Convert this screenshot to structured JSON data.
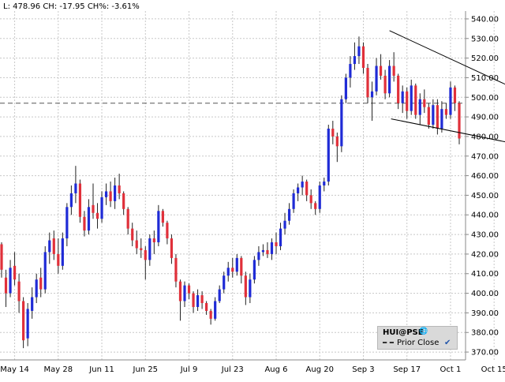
{
  "header": {
    "last_label": "L:",
    "last": "478.96",
    "change_label": "CH:",
    "change": "-17.95",
    "change_pct_label": "CH%:",
    "change_pct": "-3.61%"
  },
  "legend": {
    "symbol": "HUI@PSE",
    "globe_icon": "globe-icon",
    "prior_close_label": "Prior Close",
    "check_icon": "check-icon"
  },
  "colors": {
    "up": "#1f2bd6",
    "down": "#e0303a",
    "grid": "#c8c8c8",
    "trend": "#000000"
  },
  "chart_data": {
    "type": "candlestick",
    "title": "",
    "xlabel": "",
    "ylabel": "",
    "ylim": [
      366,
      544
    ],
    "y_ticks": [
      370,
      380,
      390,
      400,
      410,
      420,
      430,
      440,
      450,
      460,
      470,
      480,
      490,
      500,
      510,
      520,
      530,
      540
    ],
    "x_ticks": [
      "May 14",
      "May 28",
      "Jun 11",
      "Jun 25",
      "Jul 9",
      "Jul 23",
      "Aug 6",
      "Aug 20",
      "Sep 3",
      "Sep 17",
      "Oct 1",
      "Oct 15"
    ],
    "x_tick_index": [
      3,
      13,
      23,
      33,
      43,
      53,
      63,
      73,
      83,
      93,
      103,
      113
    ],
    "prior_close": 497,
    "grid": true,
    "legend_position": "bottom-right",
    "series": [
      {
        "o": 425,
        "h": 426,
        "l": 408,
        "c": 412
      },
      {
        "o": 408,
        "h": 412,
        "l": 393,
        "c": 400
      },
      {
        "o": 400,
        "h": 417,
        "l": 398,
        "c": 413
      },
      {
        "o": 414,
        "h": 421,
        "l": 404,
        "c": 407
      },
      {
        "o": 406,
        "h": 410,
        "l": 390,
        "c": 396
      },
      {
        "o": 396,
        "h": 398,
        "l": 372,
        "c": 376
      },
      {
        "o": 377,
        "h": 395,
        "l": 373,
        "c": 392
      },
      {
        "o": 391,
        "h": 403,
        "l": 387,
        "c": 398
      },
      {
        "o": 398,
        "h": 410,
        "l": 395,
        "c": 407
      },
      {
        "o": 408,
        "h": 413,
        "l": 398,
        "c": 402
      },
      {
        "o": 402,
        "h": 424,
        "l": 400,
        "c": 421
      },
      {
        "o": 421,
        "h": 431,
        "l": 415,
        "c": 427
      },
      {
        "o": 428,
        "h": 432,
        "l": 417,
        "c": 420
      },
      {
        "o": 420,
        "h": 428,
        "l": 410,
        "c": 414
      },
      {
        "o": 414,
        "h": 431,
        "l": 412,
        "c": 428
      },
      {
        "o": 428,
        "h": 446,
        "l": 424,
        "c": 444
      },
      {
        "o": 444,
        "h": 455,
        "l": 440,
        "c": 451
      },
      {
        "o": 451,
        "h": 465,
        "l": 446,
        "c": 456
      },
      {
        "o": 456,
        "h": 458,
        "l": 436,
        "c": 439
      },
      {
        "o": 439,
        "h": 442,
        "l": 429,
        "c": 432
      },
      {
        "o": 432,
        "h": 448,
        "l": 430,
        "c": 444
      },
      {
        "o": 445,
        "h": 456,
        "l": 438,
        "c": 441
      },
      {
        "o": 441,
        "h": 446,
        "l": 433,
        "c": 438
      },
      {
        "o": 438,
        "h": 452,
        "l": 436,
        "c": 449
      },
      {
        "o": 449,
        "h": 456,
        "l": 445,
        "c": 452
      },
      {
        "o": 452,
        "h": 457,
        "l": 444,
        "c": 447
      },
      {
        "o": 447,
        "h": 459,
        "l": 443,
        "c": 455
      },
      {
        "o": 455,
        "h": 461,
        "l": 448,
        "c": 451
      },
      {
        "o": 451,
        "h": 452,
        "l": 440,
        "c": 443
      },
      {
        "o": 443,
        "h": 444,
        "l": 430,
        "c": 433
      },
      {
        "o": 433,
        "h": 436,
        "l": 424,
        "c": 427
      },
      {
        "o": 427,
        "h": 432,
        "l": 420,
        "c": 423
      },
      {
        "o": 423,
        "h": 428,
        "l": 418,
        "c": 422
      },
      {
        "o": 422,
        "h": 424,
        "l": 407,
        "c": 417
      },
      {
        "o": 417,
        "h": 430,
        "l": 414,
        "c": 428
      },
      {
        "o": 428,
        "h": 432,
        "l": 420,
        "c": 426
      },
      {
        "o": 426,
        "h": 445,
        "l": 424,
        "c": 442
      },
      {
        "o": 442,
        "h": 443,
        "l": 434,
        "c": 436
      },
      {
        "o": 436,
        "h": 437,
        "l": 425,
        "c": 428
      },
      {
        "o": 428,
        "h": 430,
        "l": 415,
        "c": 418
      },
      {
        "o": 418,
        "h": 420,
        "l": 403,
        "c": 406
      },
      {
        "o": 406,
        "h": 407,
        "l": 386,
        "c": 396
      },
      {
        "o": 396,
        "h": 406,
        "l": 393,
        "c": 404
      },
      {
        "o": 404,
        "h": 405,
        "l": 397,
        "c": 400
      },
      {
        "o": 400,
        "h": 401,
        "l": 390,
        "c": 393
      },
      {
        "o": 393,
        "h": 402,
        "l": 391,
        "c": 399
      },
      {
        "o": 399,
        "h": 401,
        "l": 392,
        "c": 395
      },
      {
        "o": 395,
        "h": 396,
        "l": 389,
        "c": 391
      },
      {
        "o": 391,
        "h": 392,
        "l": 384,
        "c": 387
      },
      {
        "o": 387,
        "h": 398,
        "l": 386,
        "c": 396
      },
      {
        "o": 396,
        "h": 404,
        "l": 395,
        "c": 402
      },
      {
        "o": 402,
        "h": 411,
        "l": 400,
        "c": 409
      },
      {
        "o": 409,
        "h": 416,
        "l": 406,
        "c": 413
      },
      {
        "o": 413,
        "h": 418,
        "l": 408,
        "c": 411
      },
      {
        "o": 411,
        "h": 420,
        "l": 409,
        "c": 418
      },
      {
        "o": 418,
        "h": 419,
        "l": 405,
        "c": 409
      },
      {
        "o": 409,
        "h": 411,
        "l": 394,
        "c": 398
      },
      {
        "o": 398,
        "h": 410,
        "l": 395,
        "c": 407
      },
      {
        "o": 407,
        "h": 419,
        "l": 405,
        "c": 417
      },
      {
        "o": 417,
        "h": 424,
        "l": 414,
        "c": 421
      },
      {
        "o": 421,
        "h": 425,
        "l": 419,
        "c": 422
      },
      {
        "o": 422,
        "h": 426,
        "l": 418,
        "c": 420
      },
      {
        "o": 420,
        "h": 428,
        "l": 417,
        "c": 426
      },
      {
        "o": 426,
        "h": 431,
        "l": 420,
        "c": 424
      },
      {
        "o": 424,
        "h": 436,
        "l": 422,
        "c": 433
      },
      {
        "o": 433,
        "h": 441,
        "l": 430,
        "c": 437
      },
      {
        "o": 437,
        "h": 446,
        "l": 435,
        "c": 443
      },
      {
        "o": 443,
        "h": 453,
        "l": 441,
        "c": 451
      },
      {
        "o": 451,
        "h": 456,
        "l": 447,
        "c": 454
      },
      {
        "o": 454,
        "h": 460,
        "l": 450,
        "c": 457
      },
      {
        "o": 457,
        "h": 458,
        "l": 447,
        "c": 450
      },
      {
        "o": 450,
        "h": 453,
        "l": 443,
        "c": 446
      },
      {
        "o": 446,
        "h": 447,
        "l": 440,
        "c": 443
      },
      {
        "o": 443,
        "h": 457,
        "l": 441,
        "c": 455
      },
      {
        "o": 455,
        "h": 459,
        "l": 452,
        "c": 457
      },
      {
        "o": 457,
        "h": 486,
        "l": 455,
        "c": 484
      },
      {
        "o": 484,
        "h": 488,
        "l": 476,
        "c": 480
      },
      {
        "o": 480,
        "h": 482,
        "l": 467,
        "c": 475
      },
      {
        "o": 475,
        "h": 501,
        "l": 472,
        "c": 499
      },
      {
        "o": 499,
        "h": 512,
        "l": 497,
        "c": 510
      },
      {
        "o": 510,
        "h": 521,
        "l": 505,
        "c": 517
      },
      {
        "o": 517,
        "h": 528,
        "l": 514,
        "c": 521
      },
      {
        "o": 521,
        "h": 531,
        "l": 517,
        "c": 526
      },
      {
        "o": 526,
        "h": 528,
        "l": 512,
        "c": 515
      },
      {
        "o": 515,
        "h": 517,
        "l": 497,
        "c": 500
      },
      {
        "o": 500,
        "h": 508,
        "l": 488,
        "c": 503
      },
      {
        "o": 503,
        "h": 520,
        "l": 501,
        "c": 516
      },
      {
        "o": 516,
        "h": 522,
        "l": 509,
        "c": 511
      },
      {
        "o": 511,
        "h": 514,
        "l": 499,
        "c": 502
      },
      {
        "o": 502,
        "h": 519,
        "l": 500,
        "c": 516
      },
      {
        "o": 516,
        "h": 523,
        "l": 508,
        "c": 511
      },
      {
        "o": 511,
        "h": 512,
        "l": 494,
        "c": 497
      },
      {
        "o": 497,
        "h": 506,
        "l": 492,
        "c": 503
      },
      {
        "o": 503,
        "h": 505,
        "l": 489,
        "c": 493
      },
      {
        "o": 493,
        "h": 509,
        "l": 491,
        "c": 506
      },
      {
        "o": 506,
        "h": 507,
        "l": 489,
        "c": 491
      },
      {
        "o": 491,
        "h": 502,
        "l": 486,
        "c": 499
      },
      {
        "o": 499,
        "h": 504,
        "l": 492,
        "c": 495
      },
      {
        "o": 495,
        "h": 497,
        "l": 484,
        "c": 486
      },
      {
        "o": 486,
        "h": 499,
        "l": 484,
        "c": 496
      },
      {
        "o": 496,
        "h": 499,
        "l": 481,
        "c": 484
      },
      {
        "o": 484,
        "h": 498,
        "l": 482,
        "c": 494
      },
      {
        "o": 494,
        "h": 497,
        "l": 489,
        "c": 491
      },
      {
        "o": 491,
        "h": 508,
        "l": 489,
        "c": 505
      },
      {
        "o": 505,
        "h": 506,
        "l": 493,
        "c": 497
      },
      {
        "o": 497,
        "h": 498,
        "l": 476,
        "c": 478.96
      }
    ]
  }
}
